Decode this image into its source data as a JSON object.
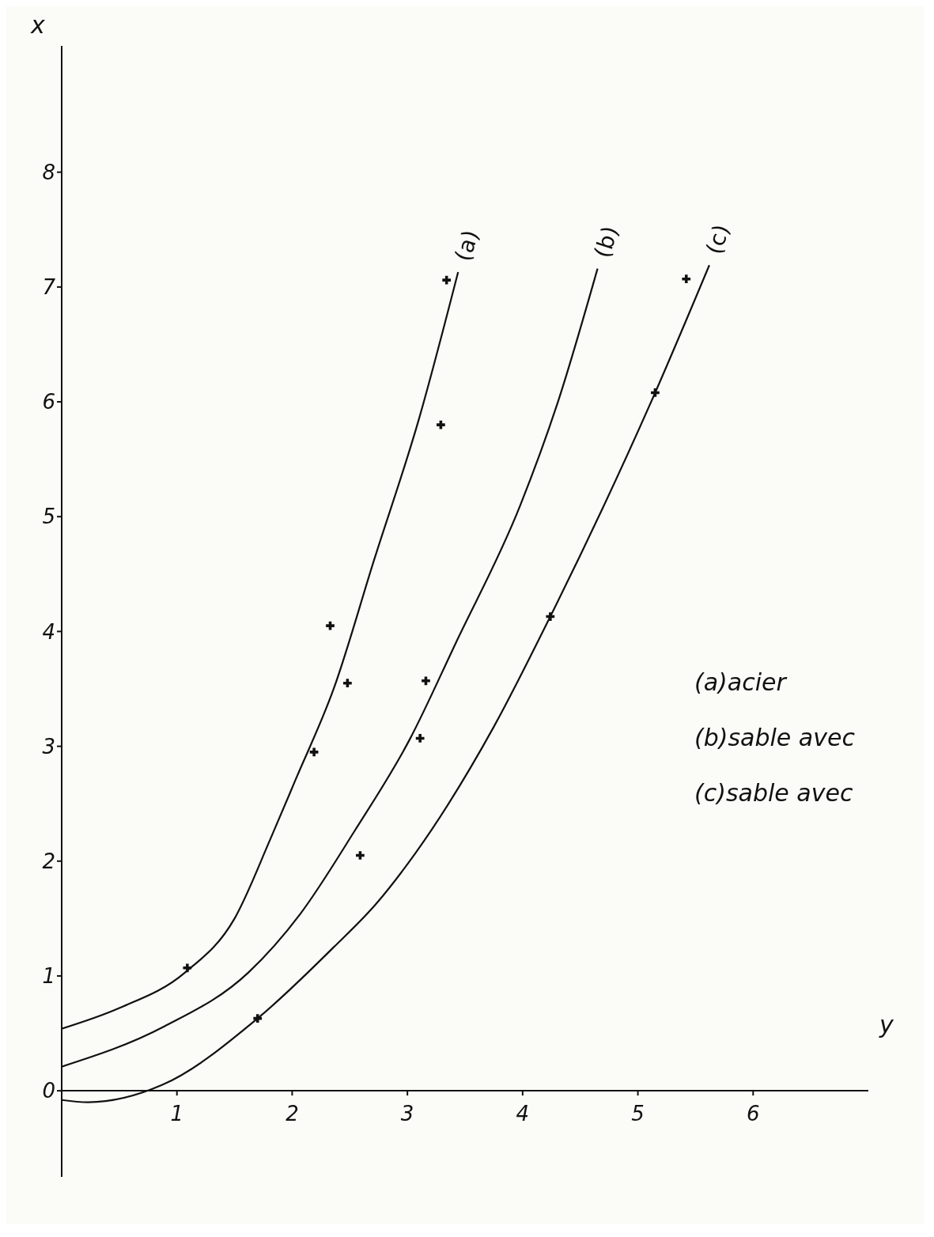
{
  "chart_data": {
    "type": "line",
    "xlabel": "y",
    "ylabel": "x",
    "xlim": [
      0,
      7
    ],
    "xticks": [
      1,
      2,
      3,
      4,
      5,
      6
    ],
    "ylim": [
      -0.75,
      9.1
    ],
    "yticks": [
      0,
      1,
      2,
      3,
      4,
      5,
      6,
      7,
      8
    ],
    "grid": false,
    "legend": false,
    "line_style": "solid",
    "annotations": [
      "(a)acier",
      "(b)sable avec",
      "(c)sable avec"
    ],
    "series": [
      {
        "name": "(a)",
        "marker": "none",
        "color": "#111111",
        "x": [
          0,
          0.5,
          1.07,
          1.5,
          1.81,
          2.03,
          2.36,
          2.71,
          3.1,
          3.44
        ],
        "values": [
          0.54,
          0.72,
          1.03,
          1.5,
          2.19,
          2.71,
          3.5,
          4.62,
          5.85,
          7.13
        ]
      },
      {
        "name": "(b)",
        "marker": "none",
        "color": "#111111",
        "x": [
          0,
          0.89,
          1.62,
          2.07,
          2.54,
          3.02,
          3.42,
          3.98,
          4.3,
          4.65
        ],
        "values": [
          0.21,
          0.56,
          1.03,
          1.54,
          2.26,
          3.06,
          3.9,
          5.1,
          5.98,
          7.16
        ]
      },
      {
        "name": "(c)",
        "marker": "none",
        "color": "#111111",
        "x": [
          0,
          0.23,
          0.87,
          1.7,
          2.36,
          2.73,
          3.07,
          3.75,
          4.24,
          5.15,
          5.62
        ],
        "values": [
          -0.08,
          -0.1,
          0.05,
          0.63,
          1.25,
          1.63,
          2.07,
          3.17,
          4.13,
          6.08,
          7.19
        ]
      },
      {
        "type": "scatter",
        "marker": "cross",
        "color": "#111111",
        "x": [
          1.09,
          2.19,
          2.48,
          2.33,
          3.29,
          3.34
        ],
        "values": [
          1.07,
          2.95,
          3.55,
          4.05,
          5.8,
          7.06
        ]
      },
      {
        "type": "scatter",
        "marker": "cross",
        "color": "#111111",
        "x": [
          3.11,
          3.16,
          2.59
        ],
        "values": [
          3.07,
          3.57,
          2.05
        ]
      },
      {
        "type": "scatter",
        "marker": "cross",
        "color": "#111111",
        "x": [
          1.7,
          4.24,
          5.15,
          5.42
        ],
        "values": [
          0.63,
          4.13,
          6.08,
          7.07
        ]
      }
    ]
  }
}
